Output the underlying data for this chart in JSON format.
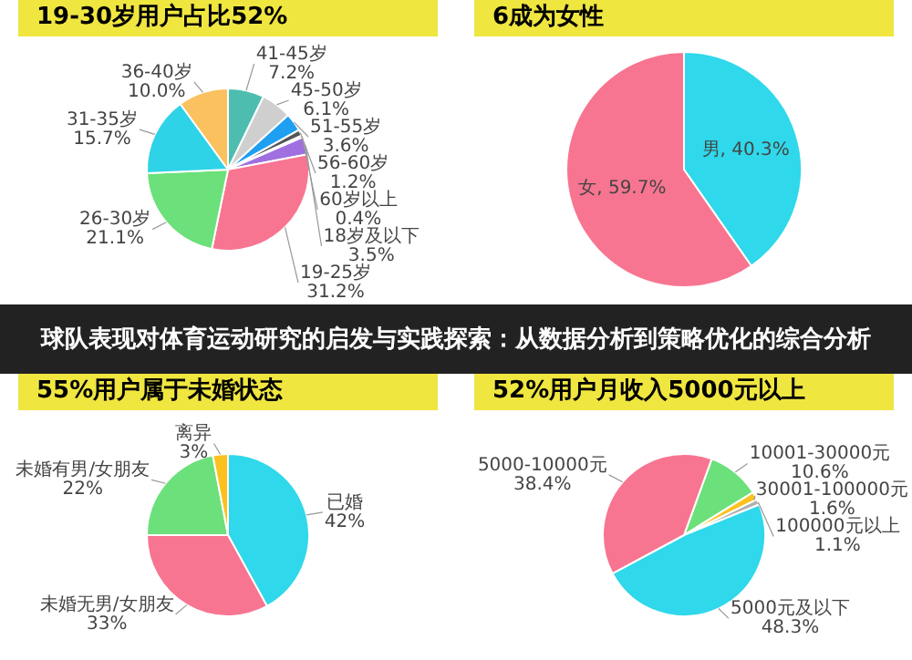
{
  "chart_data": [
    {
      "type": "pie",
      "title": "19-30岁用户占比52%",
      "categories": [
        "41-45岁",
        "45-50岁",
        "51-55岁",
        "56-60岁",
        "60岁以上",
        "18岁及以下",
        "19-25岁",
        "26-30岁",
        "31-35岁",
        "36-40岁"
      ],
      "values": [
        7.2,
        6.1,
        3.6,
        1.2,
        0.4,
        3.5,
        31.2,
        21.1,
        15.7,
        10.0
      ],
      "colors": [
        "#4dbdb0",
        "#cfcfcf",
        "#1e9ff2",
        "#555555",
        "#9a9a9a",
        "#a070e0",
        "#f77591",
        "#6ce07a",
        "#2fd3e8",
        "#fbc15e"
      ],
      "value_labels": [
        "7.2%",
        "6.1%",
        "3.6%",
        "1.2%",
        "0.4%",
        "3.5%",
        "31.2%",
        "21.1%",
        "15.7%",
        "10.0%"
      ],
      "annotations": [
        "球队表现对体育运动研究的启发与实践探索：从数据分析到策略优化的综合分析"
      ]
    },
    {
      "type": "pie",
      "title": "6成为女性",
      "categories": [
        "男",
        "女"
      ],
      "values": [
        40.3,
        59.7
      ],
      "colors": [
        "#2fd8ea",
        "#f77591"
      ],
      "value_labels": [
        "40.3%",
        "59.7%"
      ]
    },
    {
      "type": "pie",
      "title": "55%用户属于未婚状态",
      "categories": [
        "已婚",
        "未婚无男/女朋友",
        "未婚有男/女朋友",
        "离异"
      ],
      "values": [
        42,
        33,
        22,
        3
      ],
      "colors": [
        "#2fd8ea",
        "#f77591",
        "#6ce07a",
        "#fbc11e"
      ],
      "value_labels": [
        "42%",
        "33%",
        "22%",
        "3%"
      ]
    },
    {
      "type": "pie",
      "title": "52%用户月收入5000元以上",
      "categories": [
        "10001-30000元",
        "30001-100000元",
        "100000元以上",
        "5000元及以下",
        "5000-10000元"
      ],
      "values": [
        10.6,
        1.6,
        1.1,
        48.3,
        38.4
      ],
      "colors": [
        "#6ce07a",
        "#fbc11e",
        "#b0b0b0",
        "#2fd8ea",
        "#f77591"
      ],
      "value_labels": [
        "10.6%",
        "1.6%",
        "1.1%",
        "48.3%",
        "38.4%"
      ]
    }
  ]
}
